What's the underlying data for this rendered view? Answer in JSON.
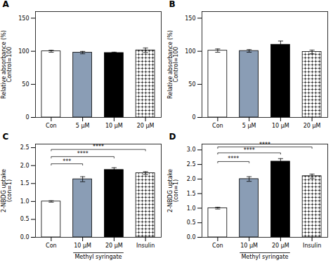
{
  "chart_data": [
    {
      "type": "bar",
      "title": "A",
      "categories": [
        "Con",
        "5 μM",
        "10 μM",
        "20 μM"
      ],
      "values": [
        100,
        98,
        97.5,
        101.5
      ],
      "errors": [
        1.5,
        1.8,
        1.2,
        3.5
      ],
      "ylabel": "Relative absorbance (%)\nControl=100",
      "ylim": [
        0,
        160
      ],
      "yticks": [
        0,
        50,
        100,
        150
      ],
      "colors": [
        "white",
        "#8a9db5",
        "black",
        "white"
      ],
      "grid": false
    },
    {
      "type": "bar",
      "title": "B",
      "categories": [
        "Con",
        "5 μM",
        "10 μM",
        "20 μM"
      ],
      "values": [
        101,
        100.5,
        110,
        99
      ],
      "errors": [
        2.5,
        2.0,
        5.5,
        2.8
      ],
      "ylabel": "Relative absorbance (%)\nControl=100",
      "ylim": [
        0,
        160
      ],
      "yticks": [
        0,
        50,
        100,
        150
      ],
      "colors": [
        "white",
        "#8a9db5",
        "black",
        "white"
      ],
      "grid": false
    },
    {
      "type": "bar",
      "title": "C",
      "categories": [
        "Con",
        "10 μM",
        "20 μM",
        "Insulin"
      ],
      "values": [
        1.0,
        1.62,
        1.88,
        1.79
      ],
      "errors": [
        0.02,
        0.07,
        0.06,
        0.04
      ],
      "ylabel": "2-NBDG uptake\n(con=1)",
      "xlabel": "Methyl syringate",
      "xlabel_span": [
        "10 μM",
        "20 μM"
      ],
      "ylim": [
        0,
        2.6
      ],
      "yticks": [
        {
          "value": 0,
          "label": "0.0"
        },
        0.5,
        {
          "value": 1,
          "label": "1.0"
        },
        1.5,
        {
          "value": 2,
          "label": "2.0"
        },
        2.5
      ],
      "colors": [
        "white",
        "#8a9db5",
        "black",
        "white"
      ],
      "annotations": [
        {
          "from": "Con",
          "to": "10 μM",
          "y": 2.05,
          "label": "***"
        },
        {
          "from": "Con",
          "to": "20 μM",
          "y": 2.25,
          "label": "****"
        },
        {
          "from": "Con",
          "to": "Insulin",
          "y": 2.45,
          "label": "****"
        }
      ],
      "grid": false
    },
    {
      "type": "bar",
      "title": "D",
      "categories": [
        "Con",
        "10 μM",
        "20 μM",
        "Insulin"
      ],
      "values": [
        1.0,
        2.0,
        2.6,
        2.1
      ],
      "errors": [
        0.03,
        0.08,
        0.1,
        0.07
      ],
      "ylabel": "2-NBDG uptake\n(con=1)",
      "xlabel": "Methyl syringate",
      "xlabel_span": [
        "10 μM",
        "20 μM"
      ],
      "ylim": [
        0,
        3.2
      ],
      "yticks": [
        {
          "value": 0,
          "label": "0.0"
        },
        0.5,
        {
          "value": 1,
          "label": "1.0"
        },
        1.5,
        {
          "value": 2,
          "label": "2.0"
        },
        2.5,
        {
          "value": 3,
          "label": "3.0"
        }
      ],
      "colors": [
        "white",
        "#8a9db5",
        "black",
        "white"
      ],
      "annotations": [
        {
          "from": "Con",
          "to": "10 μM",
          "y": 2.6,
          "label": "****"
        },
        {
          "from": "Con",
          "to": "20 μM",
          "y": 2.9,
          "label": "****"
        },
        {
          "from": "Con",
          "to": "Insulin",
          "y": 3.1,
          "label": "****"
        }
      ],
      "grid": false
    }
  ]
}
